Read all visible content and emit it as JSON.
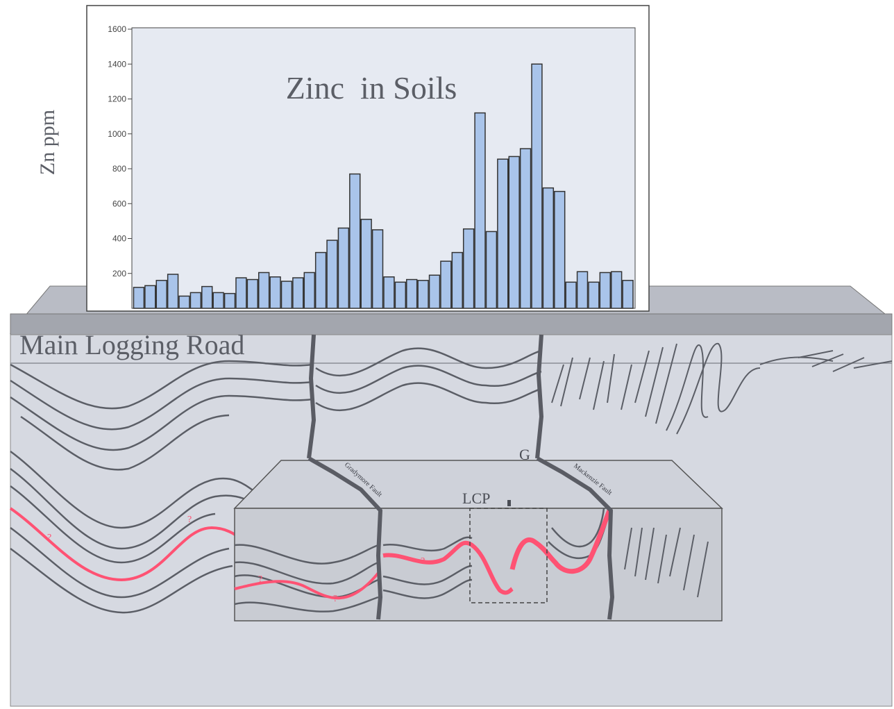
{
  "chart_data": {
    "type": "bar",
    "title": "Zinc  in Soils",
    "ylabel": "Zn ppm",
    "ylim": [
      0,
      1600
    ],
    "yticks": [
      200,
      400,
      600,
      800,
      1000,
      1200,
      1400,
      1600
    ],
    "grid": false,
    "colors": {
      "bar": "#a9c4ea",
      "bar_edge": "#333333",
      "panel": "#e6eaf2"
    },
    "values": [
      120,
      130,
      160,
      195,
      70,
      90,
      125,
      90,
      85,
      175,
      165,
      205,
      180,
      155,
      175,
      205,
      320,
      390,
      460,
      770,
      510,
      450,
      180,
      150,
      165,
      160,
      190,
      270,
      320,
      455,
      1120,
      440,
      855,
      870,
      915,
      1400,
      690,
      670,
      150,
      210,
      150,
      205,
      210,
      160
    ]
  },
  "diagram": {
    "road_label": "Main Logging Road",
    "labels": {
      "fault_left": "Gradymore Fault",
      "fault_right": "Mackenzie Fault",
      "pit": "LCP",
      "g_marker": "G",
      "question": "?"
    },
    "colors": {
      "ground": "#d7dae2",
      "road": "#9a9da6",
      "block_top": "#cdd1d9",
      "block_front": "#c9ccd3",
      "layer_line": "#5b5e66",
      "ore_horizon": "#ff5273",
      "fault": "#5a5c64"
    }
  }
}
